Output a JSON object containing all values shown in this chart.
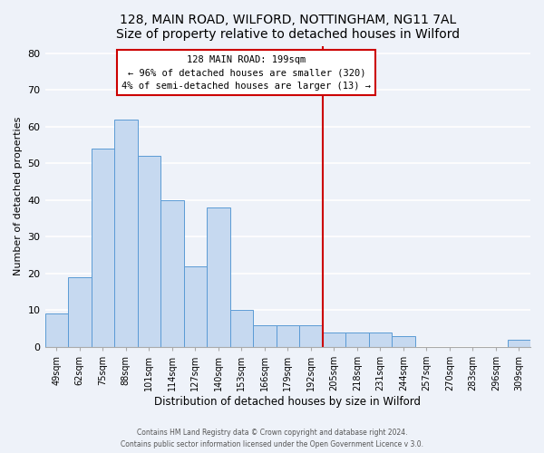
{
  "title": "128, MAIN ROAD, WILFORD, NOTTINGHAM, NG11 7AL",
  "subtitle": "Size of property relative to detached houses in Wilford",
  "xlabel": "Distribution of detached houses by size in Wilford",
  "ylabel": "Number of detached properties",
  "bar_labels": [
    "49sqm",
    "62sqm",
    "75sqm",
    "88sqm",
    "101sqm",
    "114sqm",
    "127sqm",
    "140sqm",
    "153sqm",
    "166sqm",
    "179sqm",
    "192sqm",
    "205sqm",
    "218sqm",
    "231sqm",
    "244sqm",
    "257sqm",
    "270sqm",
    "283sqm",
    "296sqm",
    "309sqm"
  ],
  "bar_values": [
    9,
    19,
    54,
    62,
    52,
    40,
    22,
    38,
    10,
    6,
    6,
    6,
    4,
    4,
    4,
    3,
    0,
    0,
    0,
    0,
    2
  ],
  "bar_color": "#c6d9f0",
  "bar_edge_color": "#5b9bd5",
  "ylim": [
    0,
    82
  ],
  "yticks": [
    0,
    10,
    20,
    30,
    40,
    50,
    60,
    70,
    80
  ],
  "vline_x": 11.5,
  "vline_color": "#cc0000",
  "annotation_title": "128 MAIN ROAD: 199sqm",
  "annotation_line1": "← 96% of detached houses are smaller (320)",
  "annotation_line2": "4% of semi-detached houses are larger (13) →",
  "footer1": "Contains HM Land Registry data © Crown copyright and database right 2024.",
  "footer2": "Contains public sector information licensed under the Open Government Licence v 3.0.",
  "background_color": "#eef2f9",
  "grid_color": "#ffffff",
  "title_fontsize": 10,
  "xlabel_fontsize": 8.5,
  "ylabel_fontsize": 8
}
